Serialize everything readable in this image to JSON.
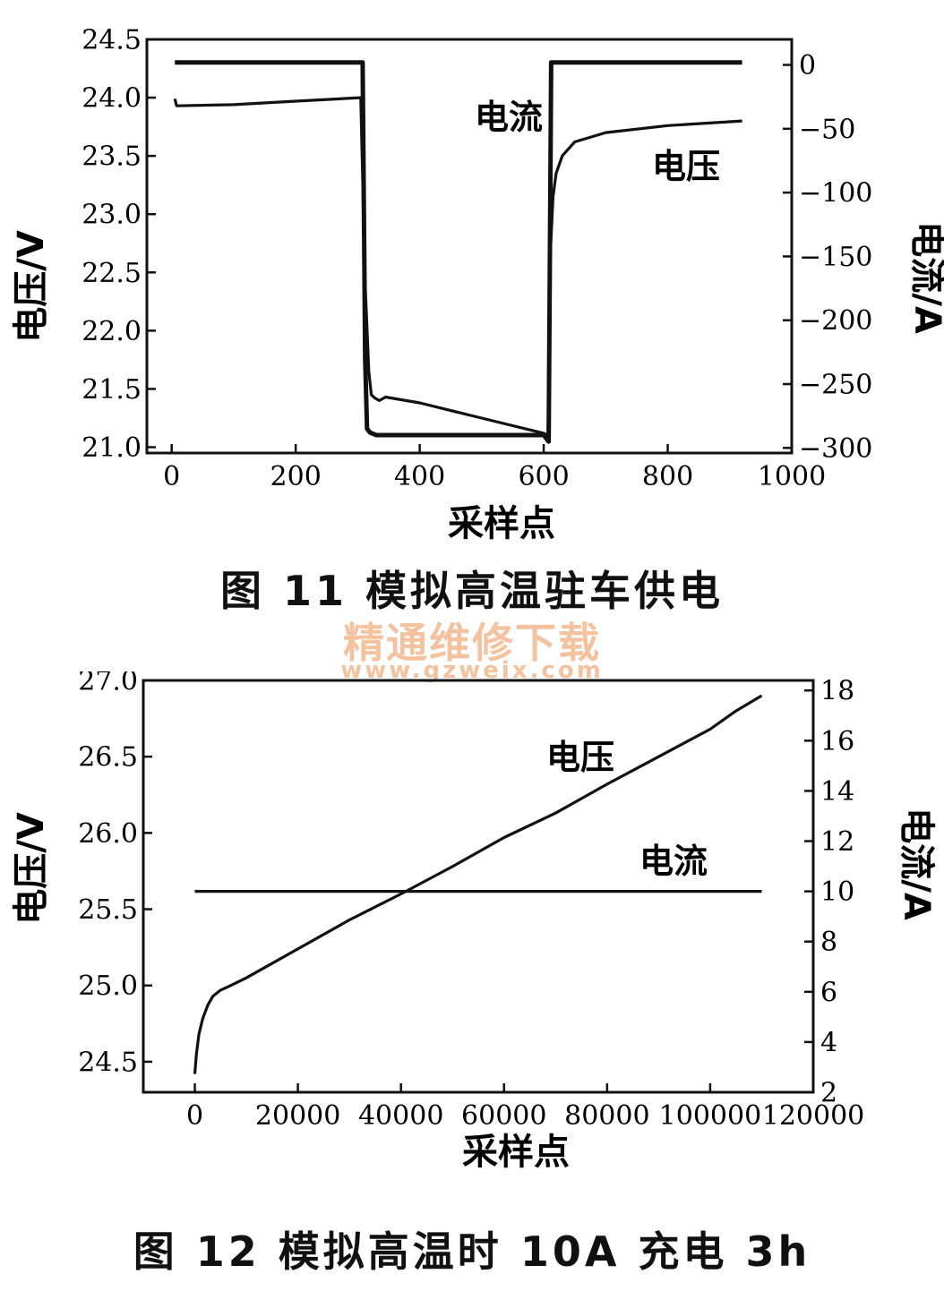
{
  "figures": [
    {
      "caption": "图 11   模拟高温驻车供电"
    },
    {
      "caption": "图 12   模拟高温时 10A 充电 3h"
    }
  ],
  "watermark": {
    "line1": "精通维修下载",
    "line2": "www.gzweix.com"
  },
  "chart_data": [
    {
      "type": "line",
      "xlabel": "采样点",
      "ylabel": "电压/V",
      "y2label": "电流/A",
      "xlim": [
        -40,
        1000
      ],
      "ylim": [
        20.95,
        24.5
      ],
      "y2lim": [
        -304,
        20
      ],
      "xticks": [
        0,
        200,
        400,
        600,
        800,
        1000
      ],
      "yticks": [
        21.0,
        21.5,
        22.0,
        22.5,
        23.0,
        23.5,
        24.0,
        24.5
      ],
      "y2ticks": [
        0,
        -50,
        -100,
        -150,
        -200,
        -250,
        -300
      ],
      "grid": false,
      "annotations": [
        "电流",
        "电压"
      ],
      "series": [
        {
          "name": "电压",
          "axis": "left",
          "x": [
            5,
            8,
            100,
            200,
            305,
            312,
            318,
            322,
            328,
            335,
            345,
            400,
            500,
            600,
            607,
            610,
            615,
            620,
            630,
            650,
            700,
            800,
            920
          ],
          "y": [
            23.99,
            23.93,
            23.94,
            23.97,
            24.0,
            22.4,
            21.65,
            21.45,
            21.42,
            21.4,
            21.43,
            21.38,
            21.25,
            21.12,
            21.1,
            22.6,
            23.15,
            23.35,
            23.5,
            23.62,
            23.7,
            23.76,
            23.8
          ]
        },
        {
          "name": "电流",
          "axis": "right",
          "x": [
            5,
            308,
            312,
            315,
            320,
            330,
            350,
            450,
            600,
            608,
            612,
            625,
            920
          ],
          "y": [
            2,
            2,
            -230,
            -285,
            -288,
            -290,
            -290,
            -290,
            -290,
            -295,
            2,
            2,
            2
          ]
        }
      ]
    },
    {
      "type": "line",
      "xlabel": "采样点",
      "ylabel": "电压/V",
      "y2label": "电流/A",
      "xlim": [
        -10000,
        120000
      ],
      "ylim": [
        24.3,
        27.0
      ],
      "y2lim": [
        2,
        18.4
      ],
      "xticks": [
        0,
        20000,
        40000,
        60000,
        80000,
        100000,
        120000
      ],
      "yticks": [
        24.5,
        25.0,
        25.5,
        26.0,
        26.5,
        27.0
      ],
      "y2ticks": [
        2,
        4,
        6,
        8,
        10,
        12,
        14,
        16,
        18
      ],
      "grid": false,
      "annotations": [
        "电压",
        "电流"
      ],
      "series": [
        {
          "name": "电压",
          "axis": "left",
          "x": [
            0,
            300,
            800,
            1500,
            2500,
            3500,
            5000,
            7000,
            10000,
            20000,
            30000,
            40000,
            50000,
            60000,
            70000,
            80000,
            90000,
            100000,
            105000,
            110000
          ],
          "y": [
            24.42,
            24.55,
            24.68,
            24.78,
            24.87,
            24.93,
            24.97,
            25.0,
            25.05,
            25.24,
            25.43,
            25.6,
            25.78,
            25.97,
            26.13,
            26.32,
            26.5,
            26.68,
            26.8,
            26.9
          ]
        },
        {
          "name": "电流",
          "axis": "right",
          "x": [
            0,
            110000
          ],
          "y": [
            10,
            10
          ]
        }
      ]
    }
  ]
}
